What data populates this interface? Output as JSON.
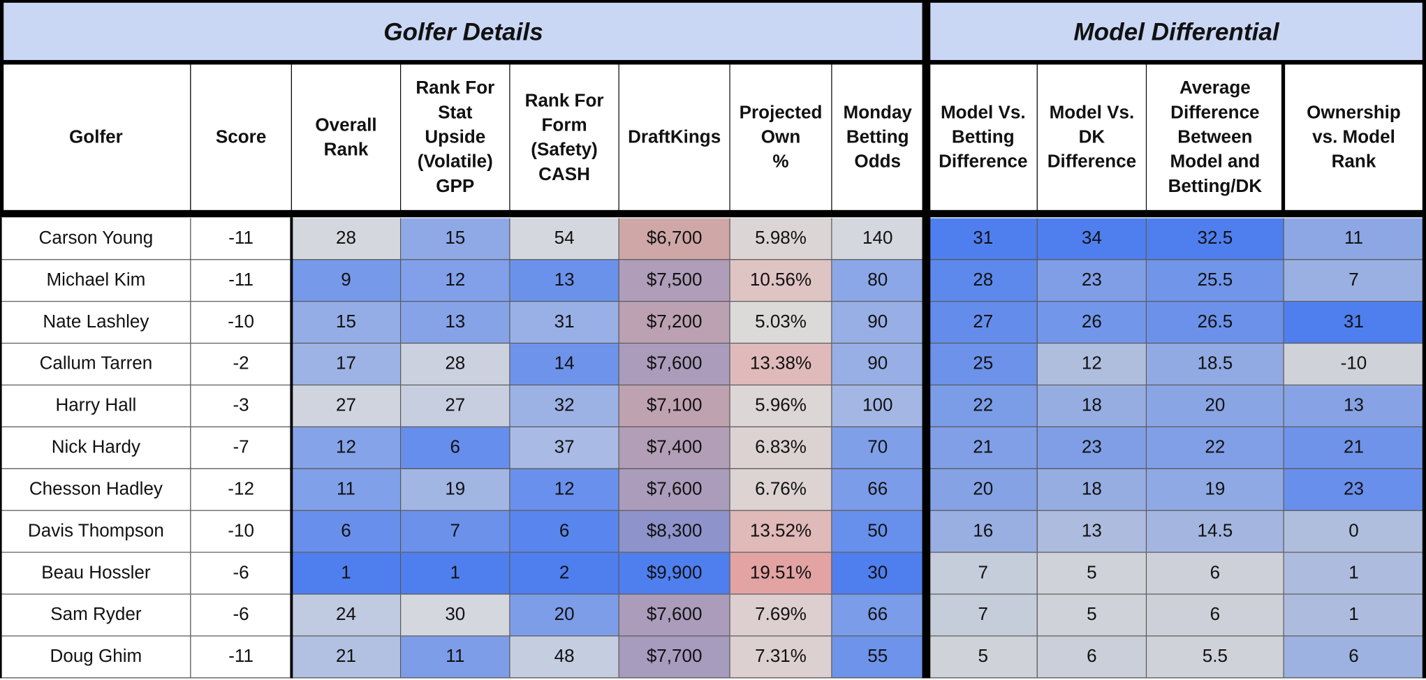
{
  "header": {
    "sections": [
      "Golfer Details",
      "Model Differential"
    ]
  },
  "table": {
    "columns": [
      "Golfer",
      "Score",
      "Overall\nRank",
      "Rank For\nStat\nUpside\n(Volatile)\nGPP",
      "Rank For\nForm\n(Safety)\nCASH",
      "DraftKings",
      "Projected\nOwn\n%",
      "Monday\nBetting\nOdds",
      "Model Vs.\nBetting\nDifference",
      "Model Vs.\nDK\nDifference",
      "Average\nDifference\nBetween\nModel and\nBetting/DK",
      "Ownership\nvs. Model\nRank"
    ],
    "rows": [
      [
        "Carson Young",
        "-11",
        "28",
        "15",
        "54",
        "$6,700",
        "5.98%",
        "140",
        "31",
        "34",
        "32.5",
        "11"
      ],
      [
        "Michael Kim",
        "-11",
        "9",
        "12",
        "13",
        "$7,500",
        "10.56%",
        "80",
        "28",
        "23",
        "25.5",
        "7"
      ],
      [
        "Nate Lashley",
        "-10",
        "15",
        "13",
        "31",
        "$7,200",
        "5.03%",
        "90",
        "27",
        "26",
        "26.5",
        "31"
      ],
      [
        "Callum Tarren",
        "-2",
        "17",
        "28",
        "14",
        "$7,600",
        "13.38%",
        "90",
        "25",
        "12",
        "18.5",
        "-10"
      ],
      [
        "Harry Hall",
        "-3",
        "27",
        "27",
        "32",
        "$7,100",
        "5.96%",
        "100",
        "22",
        "18",
        "20",
        "13"
      ],
      [
        "Nick Hardy",
        "-7",
        "12",
        "6",
        "37",
        "$7,400",
        "6.83%",
        "70",
        "21",
        "23",
        "22",
        "21"
      ],
      [
        "Chesson Hadley",
        "-12",
        "11",
        "19",
        "12",
        "$7,600",
        "6.76%",
        "66",
        "20",
        "18",
        "19",
        "23"
      ],
      [
        "Davis Thompson",
        "-10",
        "6",
        "7",
        "6",
        "$8,300",
        "13.52%",
        "50",
        "16",
        "13",
        "14.5",
        "0"
      ],
      [
        "Beau Hossler",
        "-6",
        "1",
        "1",
        "2",
        "$9,900",
        "19.51%",
        "30",
        "7",
        "5",
        "6",
        "1"
      ],
      [
        "Sam Ryder",
        "-6",
        "24",
        "30",
        "20",
        "$7,600",
        "7.69%",
        "66",
        "7",
        "5",
        "6",
        "1"
      ],
      [
        "Doug Ghim",
        "-11",
        "21",
        "11",
        "48",
        "$7,700",
        "7.31%",
        "55",
        "5",
        "6",
        "5.5",
        "6"
      ]
    ]
  }
}
